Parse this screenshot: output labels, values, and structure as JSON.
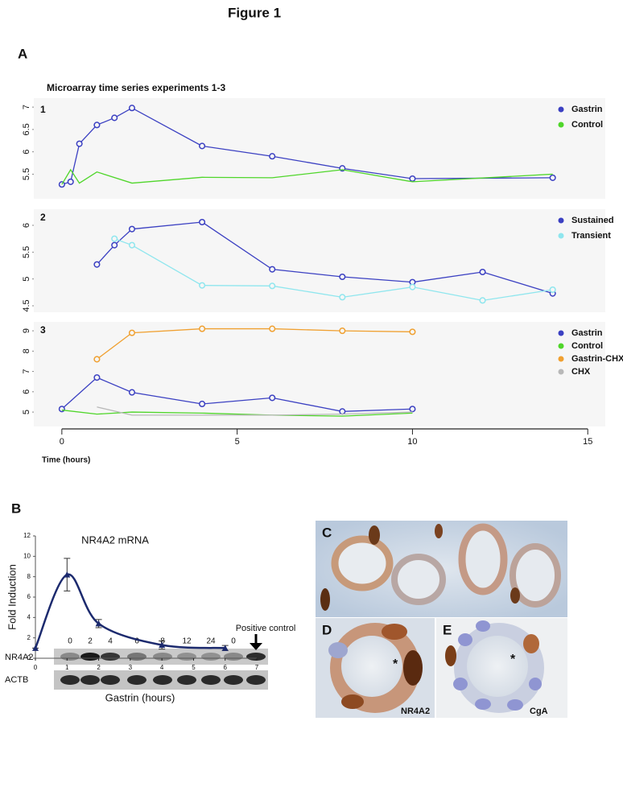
{
  "figure_title": "Figure 1",
  "panel_labels": [
    "A",
    "B",
    "C",
    "D",
    "E"
  ],
  "chart_data": [
    {
      "type": "line",
      "title": "Microarray time series experiments 1-3",
      "panel_number": "1",
      "xlim": [
        -0.8,
        15.5
      ],
      "ylim": [
        4.95,
        7.2
      ],
      "yticks": [
        5.5,
        6,
        6.5,
        7
      ],
      "legend": "upper right",
      "background": "#f6f6f6",
      "series": [
        {
          "name": "Gastrin",
          "color": "#3b40c2",
          "marker": "circle",
          "x": [
            0,
            0.25,
            0.5,
            1,
            1.5,
            2,
            4,
            6,
            8,
            10,
            14
          ],
          "values": [
            5.27,
            5.33,
            6.18,
            6.6,
            6.76,
            6.98,
            6.13,
            5.9,
            5.63,
            5.4,
            5.42
          ]
        },
        {
          "name": "Control",
          "color": "#4fd62a",
          "x": [
            0,
            0.25,
            0.5,
            1,
            2,
            4,
            6,
            8,
            10,
            14
          ],
          "values": [
            5.27,
            5.6,
            5.3,
            5.55,
            5.3,
            5.43,
            5.42,
            5.6,
            5.33,
            5.5
          ]
        }
      ]
    },
    {
      "type": "line",
      "panel_number": "2",
      "xlim": [
        -0.8,
        15.5
      ],
      "ylim": [
        4.38,
        6.3
      ],
      "yticks": [
        4.5,
        5,
        5.5,
        6
      ],
      "legend": "upper right",
      "background": "#f6f6f6",
      "series": [
        {
          "name": "Sustained",
          "color": "#3b40c2",
          "marker": "circle",
          "x": [
            1,
            1.5,
            2,
            4,
            6,
            8,
            10,
            12,
            14
          ],
          "values": [
            5.27,
            5.63,
            5.93,
            6.06,
            5.18,
            5.04,
            4.94,
            5.13,
            4.73
          ]
        },
        {
          "name": "Transient",
          "color": "#8fe6ee",
          "marker": "circle",
          "x": [
            1.5,
            2,
            4,
            6,
            8,
            10,
            12,
            14
          ],
          "values": [
            5.75,
            5.63,
            4.88,
            4.87,
            4.66,
            4.85,
            4.6,
            4.8
          ]
        }
      ]
    },
    {
      "type": "line",
      "panel_number": "3",
      "xlabel": "Time (hours)",
      "xlim": [
        -0.8,
        15.5
      ],
      "xticks": [
        0,
        5,
        10,
        15
      ],
      "ylim": [
        4.29,
        9.44
      ],
      "yticks": [
        5,
        6,
        7,
        8,
        9
      ],
      "legend": "upper right",
      "background": "#f6f6f6",
      "series": [
        {
          "name": "Gastrin",
          "color": "#3b40c2",
          "marker": "circle",
          "x": [
            0,
            1,
            2,
            4,
            6,
            8,
            10
          ],
          "values": [
            5.15,
            6.7,
            5.97,
            5.4,
            5.7,
            5.03,
            5.15
          ]
        },
        {
          "name": "Control",
          "color": "#4fd62a",
          "x": [
            0,
            1,
            2,
            4,
            6,
            8,
            10
          ],
          "values": [
            5.1,
            4.9,
            5.0,
            4.95,
            4.85,
            4.8,
            4.95
          ]
        },
        {
          "name": "Gastrin-CHX",
          "color": "#f0a030",
          "marker": "circle",
          "x": [
            1,
            2,
            4,
            6,
            8,
            10
          ],
          "values": [
            7.6,
            8.9,
            9.1,
            9.1,
            9.0,
            8.95
          ]
        },
        {
          "name": "CHX",
          "color": "#b8b8b8",
          "x": [
            1,
            2,
            4,
            6,
            8,
            10
          ],
          "values": [
            5.25,
            4.85,
            4.85,
            4.85,
            4.9,
            5.0
          ]
        }
      ]
    },
    {
      "type": "line",
      "title": "NR4A2 mRNA",
      "xlabel": "Gastrin  (hours)",
      "ylabel": "Fold Induction",
      "smooth": true,
      "xlim": [
        0,
        7
      ],
      "xticks": [
        0,
        1,
        2,
        3,
        4,
        5,
        6,
        7
      ],
      "ylim": [
        0,
        12
      ],
      "yticks": [
        0,
        2,
        4,
        6,
        8,
        10,
        12
      ],
      "series": [
        {
          "color": "#1c2a6e",
          "marker": "triangle",
          "x": [
            0,
            1,
            2,
            4,
            6
          ],
          "values": [
            1.0,
            8.2,
            3.4,
            1.3,
            1.0
          ],
          "errors": [
            0,
            1.6,
            0.4,
            0.4,
            0.25
          ]
        }
      ]
    }
  ],
  "blot": {
    "lanes": [
      "0",
      "2",
      "4",
      "6",
      "8",
      "12",
      "24",
      "0"
    ],
    "positive_control": "Positive control",
    "rows": [
      "NR4A2",
      "ACTB"
    ]
  },
  "micrographs": {
    "d_label": "NR4A2",
    "e_label": "CgA",
    "asterisk": "*"
  }
}
